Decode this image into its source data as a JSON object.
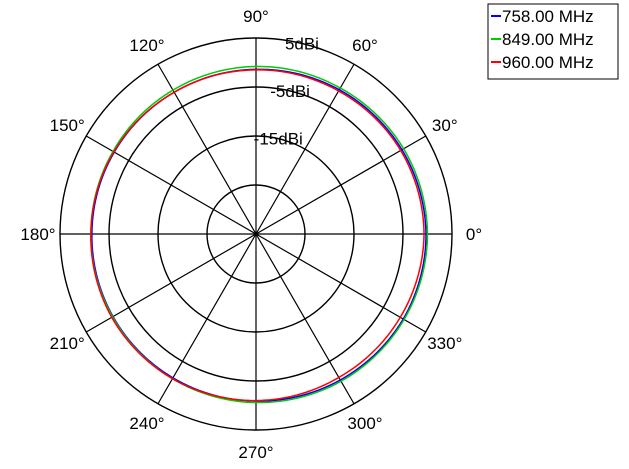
{
  "chart_data": {
    "type": "polar",
    "radial_unit": "dBi",
    "radial_range": [
      -35,
      5
    ],
    "radial_ticks": [
      {
        "value": 5,
        "label": "5dBi"
      },
      {
        "value": -5,
        "label": "-5dBi"
      },
      {
        "value": -15,
        "label": "-15dBi"
      },
      {
        "value": -25,
        "label": ""
      }
    ],
    "angle_ticks": [
      {
        "angle": 0,
        "label": "0°"
      },
      {
        "angle": 30,
        "label": "30°"
      },
      {
        "angle": 60,
        "label": "60°"
      },
      {
        "angle": 90,
        "label": "90°"
      },
      {
        "angle": 120,
        "label": "120°"
      },
      {
        "angle": 150,
        "label": "150°"
      },
      {
        "angle": 180,
        "label": "180°"
      },
      {
        "angle": 210,
        "label": "210°"
      },
      {
        "angle": 240,
        "label": "240°"
      },
      {
        "angle": 270,
        "label": "270°"
      },
      {
        "angle": 300,
        "label": "300°"
      },
      {
        "angle": 330,
        "label": "330°"
      }
    ],
    "angles_deg": [
      0,
      30,
      60,
      90,
      120,
      150,
      180,
      210,
      240,
      270,
      300,
      330
    ],
    "series": [
      {
        "name": "758.00 MHz",
        "color": "#0000ff",
        "values": [
          -0.3,
          -0.6,
          -1.0,
          -1.4,
          -1.6,
          -1.6,
          -1.5,
          -1.3,
          -1.1,
          -0.9,
          -0.6,
          -0.3
        ]
      },
      {
        "name": "849.00 MHz",
        "color": "#00cc00",
        "values": [
          0.0,
          -0.2,
          -0.6,
          -0.8,
          -1.1,
          -1.3,
          -1.3,
          -1.2,
          -0.9,
          -0.6,
          -0.3,
          -0.1
        ]
      },
      {
        "name": "960.00 MHz",
        "color": "#ff0000",
        "values": [
          -0.7,
          -0.9,
          -1.3,
          -1.5,
          -1.6,
          -1.5,
          -1.3,
          -1.0,
          -0.9,
          -1.0,
          -1.2,
          -1.0
        ]
      }
    ],
    "legend_position": "top-right",
    "grid": true
  }
}
